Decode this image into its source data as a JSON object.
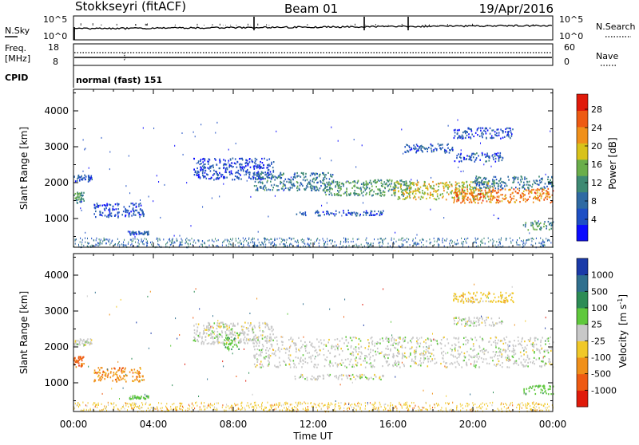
{
  "header": {
    "station": "Stokkseyri (fitACF)",
    "beam": "Beam 01",
    "date": "19/Apr/2016"
  },
  "status_panels": {
    "nsky_label": "N.Sky",
    "nsky_ticks": [
      "10^5",
      "10^0"
    ],
    "nsearch_label": "N.Search",
    "nsearch_ticks": [
      "10^5",
      "10^0"
    ],
    "freq_label_line1": "Freq.",
    "freq_label_line2": "[MHz]",
    "freq_ticks": [
      "18",
      "8"
    ],
    "nave_label": "Nave",
    "nave_ticks": [
      "60",
      "0"
    ],
    "cpid_label": "CPID",
    "cpid_value": "normal (fast) 151"
  },
  "chart_data": [
    {
      "type": "heatmap",
      "name": "power",
      "ylabel": "Slant Range [km]",
      "ylim": [
        200,
        4600
      ],
      "yticks": [
        "1000",
        "2000",
        "3000",
        "4000"
      ],
      "xlim_hours": [
        0,
        24
      ],
      "colorbar_label": "Power [dB]",
      "colorbar_ticks": [
        "4",
        "8",
        "12",
        "16",
        "20",
        "24",
        "28"
      ],
      "colorbar_colors": [
        "#0b0bff",
        "#1e4fc4",
        "#2f6aa3",
        "#3e8a73",
        "#6aae4a",
        "#d8c21a",
        "#f0901a",
        "#ee5a12",
        "#e01a0a"
      ],
      "bands": [
        {
          "t0": 0.0,
          "t1": 0.9,
          "r0": 2050,
          "r1": 2250,
          "val": 8
        },
        {
          "t0": 0.0,
          "t1": 0.5,
          "r0": 1450,
          "r1": 1750,
          "val": 13
        },
        {
          "t0": 1.0,
          "t1": 3.5,
          "r0": 1050,
          "r1": 1450,
          "val": 7
        },
        {
          "t0": 2.7,
          "t1": 3.8,
          "r0": 560,
          "r1": 660,
          "val": 8
        },
        {
          "t0": 6.0,
          "t1": 10.0,
          "r0": 2100,
          "r1": 2700,
          "val": 7
        },
        {
          "t0": 9.0,
          "t1": 13.0,
          "r0": 1800,
          "r1": 2300,
          "val": 11
        },
        {
          "t0": 11.0,
          "t1": 15.5,
          "r0": 1100,
          "r1": 1250,
          "val": 8
        },
        {
          "t0": 12.5,
          "t1": 17.0,
          "r0": 1650,
          "r1": 2100,
          "val": 14
        },
        {
          "t0": 16.0,
          "t1": 21.0,
          "r0": 1550,
          "r1": 2050,
          "val": 19
        },
        {
          "t0": 19.0,
          "t1": 24.0,
          "r0": 1450,
          "r1": 1850,
          "val": 24
        },
        {
          "t0": 20.0,
          "t1": 24.0,
          "r0": 1850,
          "r1": 2200,
          "val": 11
        },
        {
          "t0": 22.5,
          "t1": 24.0,
          "r0": 700,
          "r1": 950,
          "val": 13
        },
        {
          "t0": 19.0,
          "t1": 22.0,
          "r0": 3250,
          "r1": 3550,
          "val": 7
        },
        {
          "t0": 19.0,
          "t1": 21.5,
          "r0": 2600,
          "r1": 2850,
          "val": 8
        },
        {
          "t0": 16.5,
          "t1": 19.0,
          "r0": 2850,
          "r1": 3100,
          "val": 8
        }
      ]
    },
    {
      "type": "heatmap",
      "name": "velocity",
      "ylabel": "Slant Range [km]",
      "ylim": [
        200,
        4600
      ],
      "yticks": [
        "1000",
        "2000",
        "3000",
        "4000"
      ],
      "xlim_hours": [
        0,
        24
      ],
      "xticks": [
        "00:00",
        "04:00",
        "08:00",
        "12:00",
        "16:00",
        "20:00",
        "00:00"
      ],
      "xlabel": "Time UT",
      "colorbar_label_main": "Velocity",
      "colorbar_label_unit": "[m s",
      "colorbar_label_exp": "-1",
      "colorbar_ticks": [
        "1000",
        "500",
        "100",
        "25",
        "-25",
        "-100",
        "-500",
        "-1000"
      ],
      "colorbar_colors": [
        "#1a3aa8",
        "#2f6f8e",
        "#2c8c55",
        "#5fc83c",
        "#c8c8c8",
        "#f0c828",
        "#f0901a",
        "#ee5a12",
        "#e01a0a"
      ],
      "bands": [
        {
          "t0": 0.0,
          "t1": 0.9,
          "r0": 2050,
          "r1": 2250,
          "cat": 4
        },
        {
          "t0": 0.0,
          "t1": 0.5,
          "r0": 1450,
          "r1": 1750,
          "cat": 7
        },
        {
          "t0": 1.0,
          "t1": 3.5,
          "r0": 1050,
          "r1": 1450,
          "cat": 6
        },
        {
          "t0": 2.7,
          "t1": 3.8,
          "r0": 560,
          "r1": 660,
          "cat": 3
        },
        {
          "t0": 6.0,
          "t1": 10.0,
          "r0": 2100,
          "r1": 2700,
          "cat": 4
        },
        {
          "t0": 7.5,
          "t1": 8.3,
          "r0": 1950,
          "r1": 2350,
          "cat": 3
        },
        {
          "t0": 9.0,
          "t1": 24.0,
          "r0": 1450,
          "r1": 2300,
          "cat": 4
        },
        {
          "t0": 11.0,
          "t1": 15.5,
          "r0": 1100,
          "r1": 1250,
          "cat": 4
        },
        {
          "t0": 22.5,
          "t1": 24.0,
          "r0": 700,
          "r1": 950,
          "cat": 3
        },
        {
          "t0": 19.0,
          "t1": 22.0,
          "r0": 3250,
          "r1": 3550,
          "cat": 5
        },
        {
          "t0": 19.0,
          "t1": 21.5,
          "r0": 2600,
          "r1": 2850,
          "cat": 4
        }
      ]
    }
  ]
}
